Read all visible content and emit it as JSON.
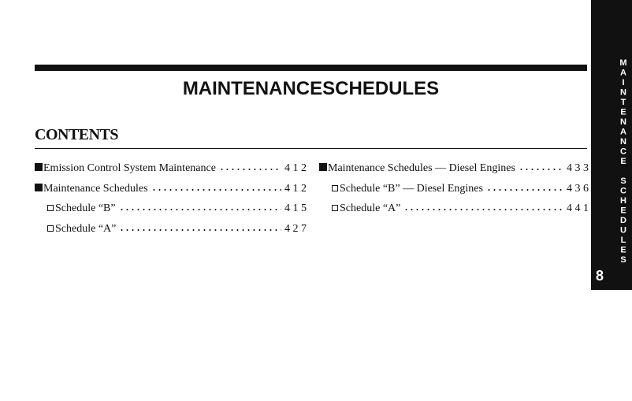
{
  "header": {
    "title": "MAINTENANCESCHEDULES"
  },
  "contents": {
    "heading": "CONTENTS",
    "columns": [
      [
        {
          "level": 1,
          "text": "Emission Control System Maintenance",
          "page": "4 1 2"
        },
        {
          "level": 1,
          "text": "Maintenance Schedules",
          "page": "4 1 2"
        },
        {
          "level": 2,
          "text": "Schedule “B”",
          "page": "4 1 5"
        },
        {
          "level": 2,
          "text": "Schedule “A”",
          "page": "4 2 7"
        }
      ],
      [
        {
          "level": 1,
          "text": "Maintenance Schedules — Diesel Engines",
          "page": "4 3 3"
        },
        {
          "level": 2,
          "text": "Schedule “B” — Diesel Engines",
          "page": "4 3 6"
        },
        {
          "level": 2,
          "text": "Schedule “A”",
          "page": "4 4 1"
        }
      ]
    ]
  },
  "side_tab": {
    "label": "MAINTENANCE SCHEDULES",
    "number": "8"
  }
}
